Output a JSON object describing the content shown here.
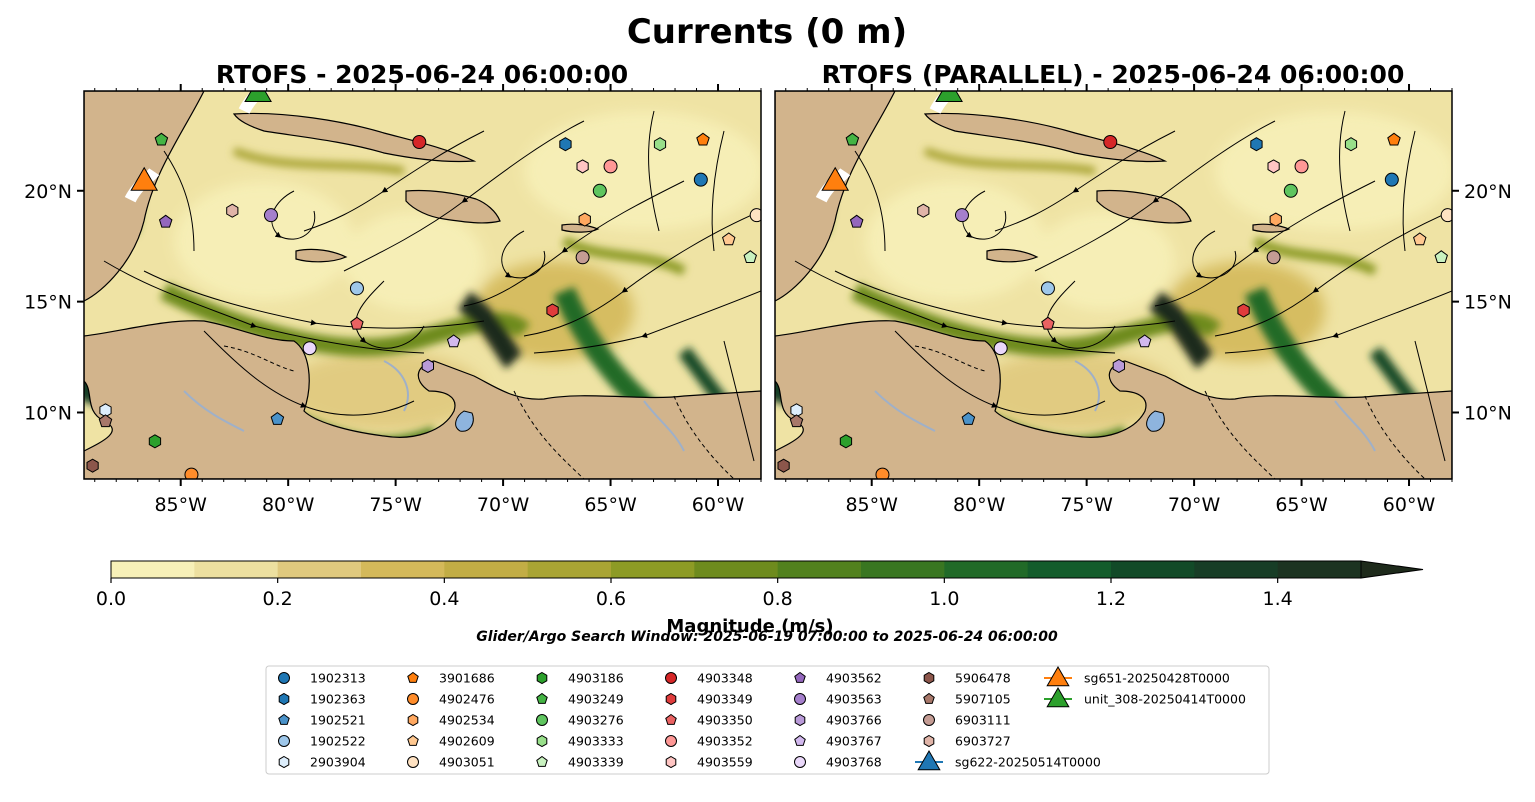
{
  "figure": {
    "title": "Currents (0 m)",
    "window_note": "Glider/Argo Search Window: 2025-06-19 07:00:00 to 2025-06-24 06:00:00"
  },
  "panels": [
    {
      "title": "RTOFS - 2025-06-24 06:00:00"
    },
    {
      "title": "RTOFS (PARALLEL) - 2025-06-24 06:00:00"
    }
  ],
  "map": {
    "lon_ticks": [
      "85°W",
      "80°W",
      "75°W",
      "70°W",
      "65°W",
      "60°W"
    ],
    "lat_ticks": [
      "20°N",
      "15°N",
      "10°N"
    ],
    "lon_range": [
      -89.5,
      -58
    ],
    "lat_range": [
      7,
      24.5
    ],
    "land_color": "#d2b48c",
    "lake_color": "#8eb4de"
  },
  "colorbar": {
    "label": "Magnitude (m/s)",
    "range": [
      0,
      1.5
    ],
    "extend": "max",
    "tick_labels": [
      "0.0",
      "0.2",
      "0.4",
      "0.6",
      "0.8",
      "1.0",
      "1.2",
      "1.4"
    ],
    "colors": [
      "#f7f0b8",
      "#ede0a0",
      "#e0c97e",
      "#d4b95a",
      "#c2ad45",
      "#a9a434",
      "#8d9b25",
      "#6e8b1e",
      "#52811e",
      "#397621",
      "#216a28",
      "#135c2b",
      "#124a28",
      "#173d26",
      "#1c3321",
      "#1e2a1b"
    ]
  },
  "legend": {
    "entries": [
      {
        "label": "1902313",
        "shape": "circle",
        "color": "#1f77b4"
      },
      {
        "label": "1902363",
        "shape": "hexagon",
        "color": "#1f77b4"
      },
      {
        "label": "1902521",
        "shape": "pentagon",
        "color": "#4a92c9"
      },
      {
        "label": "1902522",
        "shape": "circle",
        "color": "#9ec7ea"
      },
      {
        "label": "2903904",
        "shape": "hexagon",
        "color": "#ddeefc"
      },
      {
        "label": "3901686",
        "shape": "pentagon",
        "color": "#ff7f0e"
      },
      {
        "label": "4902476",
        "shape": "circle",
        "color": "#ff8c2a"
      },
      {
        "label": "4902534",
        "shape": "hexagon",
        "color": "#ffa860"
      },
      {
        "label": "4902609",
        "shape": "pentagon",
        "color": "#ffc890"
      },
      {
        "label": "4903051",
        "shape": "circle",
        "color": "#ffe2c2"
      },
      {
        "label": "4903186",
        "shape": "hexagon",
        "color": "#2ca02c"
      },
      {
        "label": "4903249",
        "shape": "pentagon",
        "color": "#44b444"
      },
      {
        "label": "4903276",
        "shape": "circle",
        "color": "#5fc55f"
      },
      {
        "label": "4903333",
        "shape": "hexagon",
        "color": "#98df8a"
      },
      {
        "label": "4903339",
        "shape": "pentagon",
        "color": "#c9f2c0"
      },
      {
        "label": "4903348",
        "shape": "circle",
        "color": "#d62728"
      },
      {
        "label": "4903349",
        "shape": "hexagon",
        "color": "#e03c3c"
      },
      {
        "label": "4903350",
        "shape": "pentagon",
        "color": "#ea6262"
      },
      {
        "label": "4903352",
        "shape": "circle",
        "color": "#ff9896"
      },
      {
        "label": "4903559",
        "shape": "hexagon",
        "color": "#ffc5c3"
      },
      {
        "label": "4903562",
        "shape": "pentagon",
        "color": "#9467bd"
      },
      {
        "label": "4903563",
        "shape": "circle",
        "color": "#a57fcc"
      },
      {
        "label": "4903766",
        "shape": "hexagon",
        "color": "#b99ad8"
      },
      {
        "label": "4903767",
        "shape": "pentagon",
        "color": "#d2b8ee"
      },
      {
        "label": "4903768",
        "shape": "circle",
        "color": "#ead8fa"
      },
      {
        "label": "5906478",
        "shape": "hexagon",
        "color": "#8c564b"
      },
      {
        "label": "5907105",
        "shape": "pentagon",
        "color": "#a8786a"
      },
      {
        "label": "6903111",
        "shape": "circle",
        "color": "#c49c94"
      },
      {
        "label": "6903727",
        "shape": "hexagon",
        "color": "#e0b4a8"
      },
      {
        "label": "sg622-20250514T0000",
        "shape": "triangle",
        "color": "#1f77b4",
        "line": true
      },
      {
        "label": "sg651-20250428T0000",
        "shape": "triangle",
        "color": "#ff7f0e",
        "line": true
      },
      {
        "label": "unit_308-20250414T0000",
        "shape": "triangle",
        "color": "#2ca02c",
        "line": true
      }
    ]
  },
  "markers": [
    {
      "id": "1902313",
      "lon": -60.8,
      "lat": 20.5
    },
    {
      "id": "1902363",
      "lon": -67.1,
      "lat": 22.1
    },
    {
      "id": "1902521",
      "lon": -80.5,
      "lat": 9.7
    },
    {
      "id": "1902522",
      "lon": -76.8,
      "lat": 15.6
    },
    {
      "id": "2903904",
      "lon": -88.5,
      "lat": 10.1
    },
    {
      "id": "3901686",
      "lon": -60.7,
      "lat": 22.3
    },
    {
      "id": "4902476",
      "lon": -84.5,
      "lat": 7.2
    },
    {
      "id": "4902534",
      "lon": -66.2,
      "lat": 18.7
    },
    {
      "id": "4902609",
      "lon": -59.5,
      "lat": 17.8
    },
    {
      "id": "4903051",
      "lon": -58.2,
      "lat": 18.9
    },
    {
      "id": "4903186",
      "lon": -86.2,
      "lat": 8.7
    },
    {
      "id": "4903249",
      "lon": -85.9,
      "lat": 22.3
    },
    {
      "id": "4903276",
      "lon": -65.5,
      "lat": 20.0
    },
    {
      "id": "4903333",
      "lon": -62.7,
      "lat": 22.1
    },
    {
      "id": "4903339",
      "lon": -58.5,
      "lat": 17.0
    },
    {
      "id": "4903348",
      "lon": -73.9,
      "lat": 22.2
    },
    {
      "id": "4903349",
      "lon": -67.7,
      "lat": 14.6
    },
    {
      "id": "4903350",
      "lon": -76.8,
      "lat": 14.0
    },
    {
      "id": "4903352",
      "lon": -65.0,
      "lat": 21.1
    },
    {
      "id": "4903559",
      "lon": -66.3,
      "lat": 21.1
    },
    {
      "id": "4903562",
      "lon": -85.7,
      "lat": 18.6
    },
    {
      "id": "4903563",
      "lon": -80.8,
      "lat": 18.9
    },
    {
      "id": "4903766",
      "lon": -73.5,
      "lat": 12.1
    },
    {
      "id": "4903767",
      "lon": -72.3,
      "lat": 13.2
    },
    {
      "id": "4903768",
      "lon": -79.0,
      "lat": 12.9
    },
    {
      "id": "5906478",
      "lon": -89.1,
      "lat": 7.6
    },
    {
      "id": "5907105",
      "lon": -88.5,
      "lat": 9.6
    },
    {
      "id": "6903111",
      "lon": -66.3,
      "lat": 17.0
    },
    {
      "id": "6903727",
      "lon": -82.6,
      "lat": 19.1
    }
  ],
  "gliders": [
    {
      "id": "sg651-20250428T0000",
      "lon": -86.7,
      "lat": 20.5,
      "color": "#ff7f0e"
    },
    {
      "id": "unit_308-20250414T0000",
      "lon": -81.4,
      "lat": 24.5,
      "color": "#2ca02c"
    }
  ]
}
